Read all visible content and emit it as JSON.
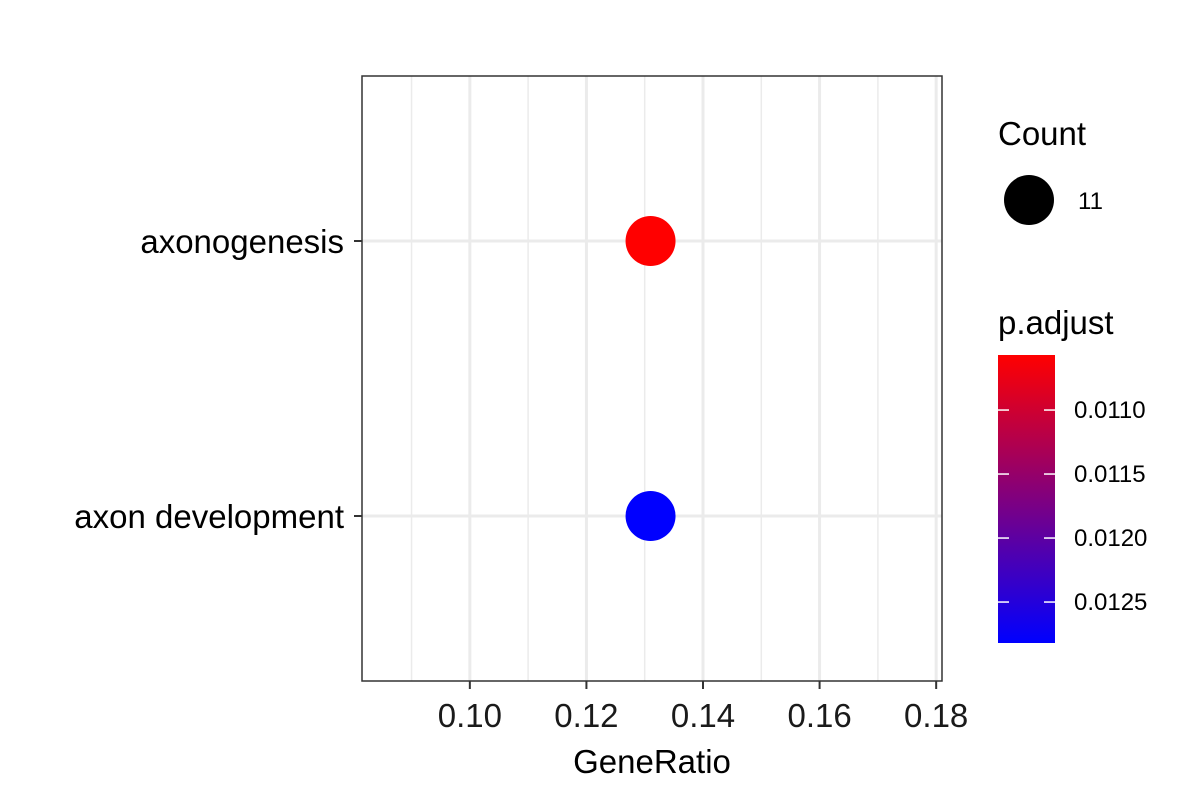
{
  "chart_data": {
    "type": "scatter",
    "xlabel": "GeneRatio",
    "xlim": [
      0.0815,
      0.181
    ],
    "x_ticks": [
      "0.10",
      "0.12",
      "0.14",
      "0.16",
      "0.18"
    ],
    "x_tick_values": [
      0.1,
      0.12,
      0.14,
      0.16,
      0.18
    ],
    "categories": [
      "axonogenesis",
      "axon development"
    ],
    "points": [
      {
        "term": "axonogenesis",
        "gene_ratio": 0.131,
        "count": 11,
        "p_adjust": 0.01057,
        "color": "#ff0000"
      },
      {
        "term": "axon development",
        "gene_ratio": 0.131,
        "count": 11,
        "p_adjust": 0.01282,
        "color": "#0000ff"
      }
    ],
    "grid": true,
    "legend": {
      "position": "right",
      "size_title": "Count",
      "size_labels": [
        "11"
      ],
      "color_title": "p.adjust",
      "color_low": "#ff0000",
      "color_high": "#0000ff",
      "color_range": [
        0.01057,
        0.01282
      ],
      "color_ticks": [
        "0.0110",
        "0.0115",
        "0.0120",
        "0.0125"
      ],
      "color_tick_values": [
        0.011,
        0.0115,
        0.012,
        0.0125
      ]
    }
  }
}
